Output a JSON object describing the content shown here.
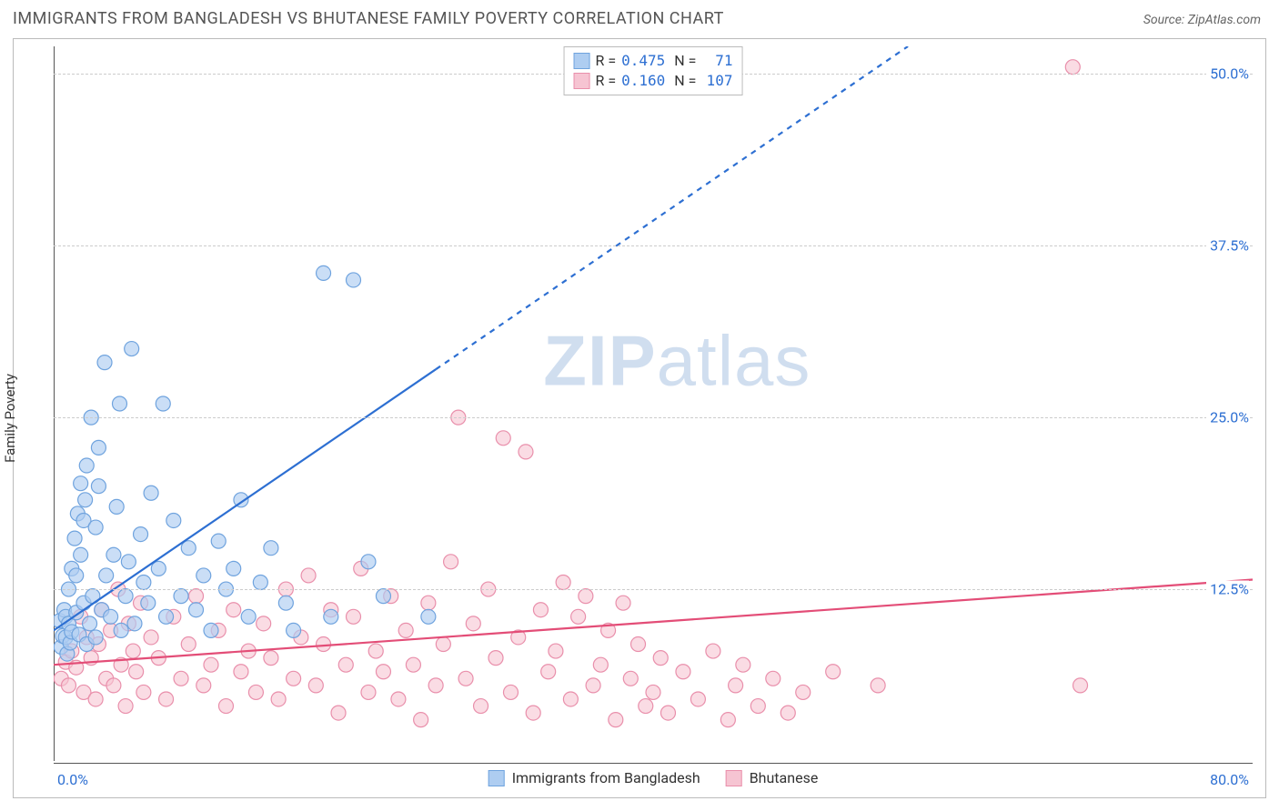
{
  "title": "IMMIGRANTS FROM BANGLADESH VS BHUTANESE FAMILY POVERTY CORRELATION CHART",
  "source_label": "Source: ",
  "source_name": "ZipAtlas.com",
  "ylabel": "Family Poverty",
  "watermark_a": "ZIP",
  "watermark_b": "atlas",
  "chart": {
    "type": "scatter",
    "background_color": "#ffffff",
    "grid_color": "#cccccc",
    "axis_color": "#555555",
    "tick_label_color": "#2d6fd2",
    "xlim": [
      0,
      80
    ],
    "ylim": [
      0,
      52
    ],
    "x_ticks": [
      {
        "v": 0,
        "label": "0.0%"
      },
      {
        "v": 80,
        "label": "80.0%"
      }
    ],
    "y_ticks": [
      {
        "v": 12.5,
        "label": "12.5%"
      },
      {
        "v": 25.0,
        "label": "25.0%"
      },
      {
        "v": 37.5,
        "label": "37.5%"
      },
      {
        "v": 50.0,
        "label": "50.0%"
      }
    ],
    "series": [
      {
        "id": "bangladesh",
        "label": "Immigrants from Bangladesh",
        "color_fill": "#aecdf1",
        "color_stroke": "#6fa3de",
        "marker_radius": 8,
        "marker_opacity": 0.65,
        "R": "0.475",
        "N": "71",
        "trend": {
          "solid": {
            "x1": 0,
            "y1": 9.5,
            "x2": 25.5,
            "y2": 28.5
          },
          "dashed": {
            "x1": 25.5,
            "y1": 28.5,
            "x2": 57,
            "y2": 52
          },
          "stroke": "#2d6fd2",
          "width": 2.2
        },
        "points": [
          [
            0.4,
            10.2
          ],
          [
            0.5,
            8.3
          ],
          [
            0.6,
            9.1
          ],
          [
            0.7,
            11.0
          ],
          [
            0.8,
            10.5
          ],
          [
            0.8,
            9.0
          ],
          [
            0.9,
            7.8
          ],
          [
            1.0,
            10.0
          ],
          [
            1.0,
            12.5
          ],
          [
            1.1,
            8.6
          ],
          [
            1.2,
            9.4
          ],
          [
            1.2,
            14.0
          ],
          [
            1.4,
            16.2
          ],
          [
            1.5,
            10.8
          ],
          [
            1.5,
            13.5
          ],
          [
            1.6,
            18.0
          ],
          [
            1.7,
            9.2
          ],
          [
            1.8,
            15.0
          ],
          [
            1.8,
            20.2
          ],
          [
            2.0,
            11.5
          ],
          [
            2.0,
            17.5
          ],
          [
            2.1,
            19.0
          ],
          [
            2.2,
            8.5
          ],
          [
            2.2,
            21.5
          ],
          [
            2.4,
            10.0
          ],
          [
            2.5,
            25.0
          ],
          [
            2.6,
            12.0
          ],
          [
            2.8,
            9.0
          ],
          [
            2.8,
            17.0
          ],
          [
            3.0,
            20.0
          ],
          [
            3.0,
            22.8
          ],
          [
            3.2,
            11.0
          ],
          [
            3.4,
            29.0
          ],
          [
            3.5,
            13.5
          ],
          [
            3.8,
            10.5
          ],
          [
            4.0,
            15.0
          ],
          [
            4.2,
            18.5
          ],
          [
            4.4,
            26.0
          ],
          [
            4.5,
            9.5
          ],
          [
            4.8,
            12.0
          ],
          [
            5.0,
            14.5
          ],
          [
            5.2,
            30.0
          ],
          [
            5.4,
            10.0
          ],
          [
            5.8,
            16.5
          ],
          [
            6.0,
            13.0
          ],
          [
            6.3,
            11.5
          ],
          [
            6.5,
            19.5
          ],
          [
            7.0,
            14.0
          ],
          [
            7.3,
            26.0
          ],
          [
            7.5,
            10.5
          ],
          [
            8.0,
            17.5
          ],
          [
            8.5,
            12.0
          ],
          [
            9.0,
            15.5
          ],
          [
            9.5,
            11.0
          ],
          [
            10.0,
            13.5
          ],
          [
            10.5,
            9.5
          ],
          [
            11.0,
            16.0
          ],
          [
            11.5,
            12.5
          ],
          [
            12.0,
            14.0
          ],
          [
            12.5,
            19.0
          ],
          [
            13.0,
            10.5
          ],
          [
            13.8,
            13.0
          ],
          [
            14.5,
            15.5
          ],
          [
            15.5,
            11.5
          ],
          [
            16.0,
            9.5
          ],
          [
            18.0,
            35.5
          ],
          [
            18.5,
            10.5
          ],
          [
            20.0,
            35.0
          ],
          [
            21.0,
            14.5
          ],
          [
            22.0,
            12.0
          ],
          [
            25.0,
            10.5
          ]
        ]
      },
      {
        "id": "bhutanese",
        "label": "Bhutanese",
        "color_fill": "#f6c4d2",
        "color_stroke": "#e98fab",
        "marker_radius": 8,
        "marker_opacity": 0.6,
        "R": "0.160",
        "N": "107",
        "trend": {
          "solid": {
            "x1": 0,
            "y1": 7.0,
            "x2": 80,
            "y2": 13.2
          },
          "stroke": "#e34d77",
          "width": 2.2
        },
        "points": [
          [
            0.5,
            6.0
          ],
          [
            0.8,
            7.2
          ],
          [
            1.0,
            5.5
          ],
          [
            1.2,
            8.0
          ],
          [
            1.5,
            6.8
          ],
          [
            1.8,
            10.5
          ],
          [
            2.0,
            5.0
          ],
          [
            2.2,
            9.0
          ],
          [
            2.5,
            7.5
          ],
          [
            2.8,
            4.5
          ],
          [
            3.0,
            8.5
          ],
          [
            3.2,
            11.0
          ],
          [
            3.5,
            6.0
          ],
          [
            3.8,
            9.5
          ],
          [
            4.0,
            5.5
          ],
          [
            4.3,
            12.5
          ],
          [
            4.5,
            7.0
          ],
          [
            4.8,
            4.0
          ],
          [
            5.0,
            10.0
          ],
          [
            5.3,
            8.0
          ],
          [
            5.5,
            6.5
          ],
          [
            5.8,
            11.5
          ],
          [
            6.0,
            5.0
          ],
          [
            6.5,
            9.0
          ],
          [
            7.0,
            7.5
          ],
          [
            7.5,
            4.5
          ],
          [
            8.0,
            10.5
          ],
          [
            8.5,
            6.0
          ],
          [
            9.0,
            8.5
          ],
          [
            9.5,
            12.0
          ],
          [
            10.0,
            5.5
          ],
          [
            10.5,
            7.0
          ],
          [
            11.0,
            9.5
          ],
          [
            11.5,
            4.0
          ],
          [
            12.0,
            11.0
          ],
          [
            12.5,
            6.5
          ],
          [
            13.0,
            8.0
          ],
          [
            13.5,
            5.0
          ],
          [
            14.0,
            10.0
          ],
          [
            14.5,
            7.5
          ],
          [
            15.0,
            4.5
          ],
          [
            15.5,
            12.5
          ],
          [
            16.0,
            6.0
          ],
          [
            16.5,
            9.0
          ],
          [
            17.0,
            13.5
          ],
          [
            17.5,
            5.5
          ],
          [
            18.0,
            8.5
          ],
          [
            18.5,
            11.0
          ],
          [
            19.0,
            3.5
          ],
          [
            19.5,
            7.0
          ],
          [
            20.0,
            10.5
          ],
          [
            20.5,
            14.0
          ],
          [
            21.0,
            5.0
          ],
          [
            21.5,
            8.0
          ],
          [
            22.0,
            6.5
          ],
          [
            22.5,
            12.0
          ],
          [
            23.0,
            4.5
          ],
          [
            23.5,
            9.5
          ],
          [
            24.0,
            7.0
          ],
          [
            24.5,
            3.0
          ],
          [
            25.0,
            11.5
          ],
          [
            25.5,
            5.5
          ],
          [
            26.0,
            8.5
          ],
          [
            26.5,
            14.5
          ],
          [
            27.0,
            25.0
          ],
          [
            27.5,
            6.0
          ],
          [
            28.0,
            10.0
          ],
          [
            28.5,
            4.0
          ],
          [
            29.0,
            12.5
          ],
          [
            29.5,
            7.5
          ],
          [
            30.0,
            23.5
          ],
          [
            30.5,
            5.0
          ],
          [
            31.0,
            9.0
          ],
          [
            31.5,
            22.5
          ],
          [
            32.0,
            3.5
          ],
          [
            32.5,
            11.0
          ],
          [
            33.0,
            6.5
          ],
          [
            33.5,
            8.0
          ],
          [
            34.0,
            13.0
          ],
          [
            34.5,
            4.5
          ],
          [
            35.0,
            10.5
          ],
          [
            35.5,
            12.0
          ],
          [
            36.0,
            5.5
          ],
          [
            36.5,
            7.0
          ],
          [
            37.0,
            9.5
          ],
          [
            37.5,
            3.0
          ],
          [
            38.0,
            11.5
          ],
          [
            38.5,
            6.0
          ],
          [
            39.0,
            8.5
          ],
          [
            39.5,
            4.0
          ],
          [
            40.0,
            5.0
          ],
          [
            40.5,
            7.5
          ],
          [
            41.0,
            3.5
          ],
          [
            42.0,
            6.5
          ],
          [
            43.0,
            4.5
          ],
          [
            44.0,
            8.0
          ],
          [
            45.0,
            3.0
          ],
          [
            45.5,
            5.5
          ],
          [
            46.0,
            7.0
          ],
          [
            47.0,
            4.0
          ],
          [
            48.0,
            6.0
          ],
          [
            49.0,
            3.5
          ],
          [
            50.0,
            5.0
          ],
          [
            52.0,
            6.5
          ],
          [
            55.0,
            5.5
          ],
          [
            68.0,
            50.5
          ],
          [
            68.5,
            5.5
          ]
        ]
      }
    ]
  }
}
